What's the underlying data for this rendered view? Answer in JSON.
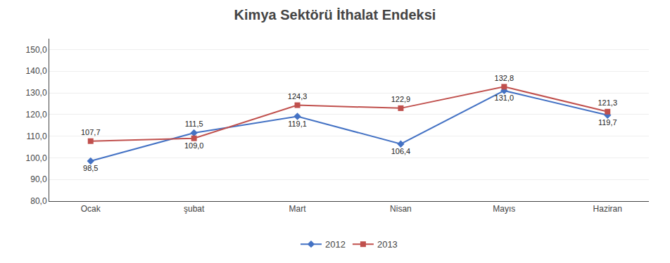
{
  "chart_data": {
    "type": "line",
    "title": "Kimya Sektörü İthalat Endeksi",
    "categories": [
      "Ocak",
      "şubat",
      "Mart",
      "Nisan",
      "Mayıs",
      "Haziran"
    ],
    "series": [
      {
        "name": "2012",
        "color": "#4472C4",
        "marker": "diamond",
        "values": [
          98.5,
          111.5,
          119.1,
          106.4,
          131.0,
          119.7
        ],
        "value_labels": [
          "98,5",
          "111,5",
          "119,1",
          "106,4",
          "131,0",
          "119,7"
        ]
      },
      {
        "name": "2013",
        "color": "#C0504D",
        "marker": "square",
        "values": [
          107.7,
          109.0,
          124.3,
          122.9,
          132.8,
          121.3
        ],
        "value_labels": [
          "107,7",
          "109,0",
          "124,3",
          "122,9",
          "132,8",
          "121,3"
        ]
      }
    ],
    "ylim": [
      80.0,
      155.0
    ],
    "yticks": [
      {
        "value": 80.0,
        "label": "80,0"
      },
      {
        "value": 90.0,
        "label": "90,0"
      },
      {
        "value": 100.0,
        "label": "100,0"
      },
      {
        "value": 110.0,
        "label": "110,0"
      },
      {
        "value": 120.0,
        "label": "120,0"
      },
      {
        "value": 130.0,
        "label": "130,0"
      },
      {
        "value": 140.0,
        "label": "140,0"
      },
      {
        "value": 150.0,
        "label": "150,0"
      }
    ],
    "grid": true,
    "data_labels": true,
    "legend": "bottom"
  }
}
